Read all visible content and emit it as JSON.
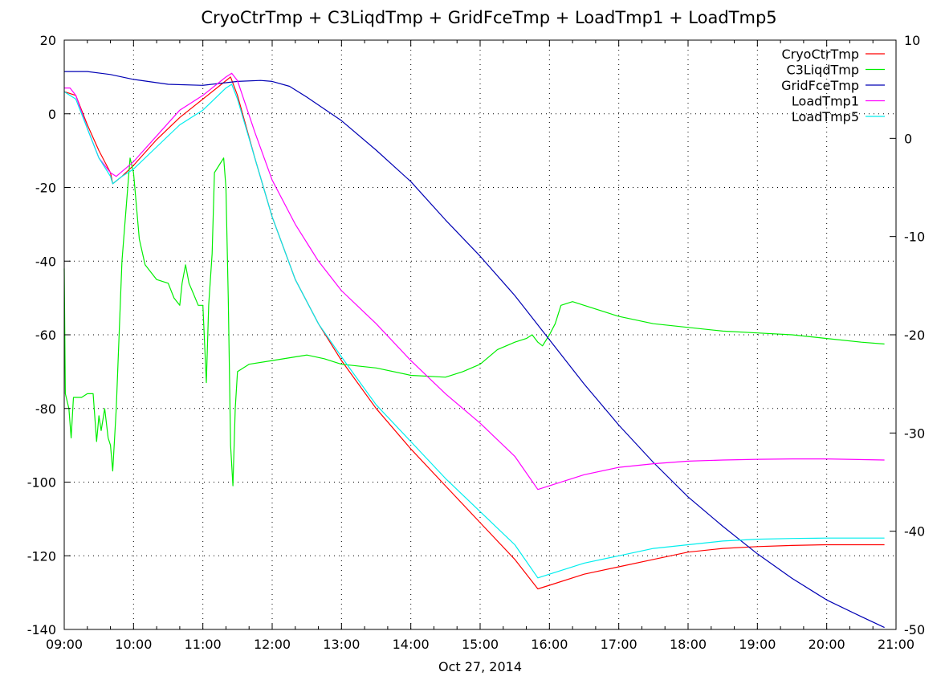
{
  "chart_data": {
    "type": "line",
    "title": "CryoCtrTmp + C3LiqdTmp + GridFceTmp + LoadTmp1 + LoadTmp5",
    "xlabel": "Oct 27, 2014",
    "x_ticks": [
      "09:00",
      "10:00",
      "11:00",
      "12:00",
      "13:00",
      "14:00",
      "15:00",
      "16:00",
      "17:00",
      "18:00",
      "19:00",
      "20:00",
      "21:00"
    ],
    "xlim": [
      "09:00",
      "21:00"
    ],
    "ylim": [
      -140,
      20
    ],
    "y_ticks": [
      "20",
      "0",
      "-20",
      "-40",
      "-60",
      "-80",
      "-100",
      "-120",
      "-140"
    ],
    "y2lim": [
      -50,
      10
    ],
    "y2_ticks": [
      "10",
      "0",
      "-10",
      "-20",
      "-30",
      "-40",
      "-50"
    ],
    "grid": true,
    "legend_position": "top-right",
    "series": [
      {
        "name": "CryoCtrTmp",
        "color": "#ff0000",
        "axis": "left",
        "points": [
          [
            "09:00",
            6
          ],
          [
            "09:10",
            5
          ],
          [
            "09:20",
            -3
          ],
          [
            "09:30",
            -10
          ],
          [
            "09:40",
            -16
          ],
          [
            "09:42",
            -19
          ],
          [
            "09:50",
            -17
          ],
          [
            "10:00",
            -14
          ],
          [
            "10:20",
            -7
          ],
          [
            "10:40",
            -1
          ],
          [
            "11:00",
            4
          ],
          [
            "11:20",
            9
          ],
          [
            "11:24",
            10
          ],
          [
            "11:30",
            5
          ],
          [
            "11:45",
            -12
          ],
          [
            "12:00",
            -28
          ],
          [
            "12:20",
            -45
          ],
          [
            "12:40",
            -57
          ],
          [
            "13:00",
            -67
          ],
          [
            "13:30",
            -80
          ],
          [
            "14:00",
            -91
          ],
          [
            "14:30",
            -101
          ],
          [
            "15:00",
            -111
          ],
          [
            "15:30",
            -121
          ],
          [
            "15:50",
            -129
          ],
          [
            "16:00",
            -128
          ],
          [
            "16:30",
            -125
          ],
          [
            "17:00",
            -123
          ],
          [
            "17:30",
            -121
          ],
          [
            "18:00",
            -119
          ],
          [
            "18:30",
            -118
          ],
          [
            "19:00",
            -117.5
          ],
          [
            "19:30",
            -117.2
          ],
          [
            "20:00",
            -117
          ],
          [
            "20:50",
            -117
          ]
        ]
      },
      {
        "name": "C3LiqdTmp",
        "color": "#00ee00",
        "axis": "left",
        "points": [
          [
            "09:00",
            -42
          ],
          [
            "09:01",
            -76
          ],
          [
            "09:04",
            -80
          ],
          [
            "09:06",
            -88
          ],
          [
            "09:08",
            -77
          ],
          [
            "09:15",
            -77
          ],
          [
            "09:20",
            -76
          ],
          [
            "09:25",
            -76
          ],
          [
            "09:28",
            -89
          ],
          [
            "09:30",
            -82
          ],
          [
            "09:32",
            -86
          ],
          [
            "09:35",
            -80
          ],
          [
            "09:38",
            -88
          ],
          [
            "09:40",
            -90
          ],
          [
            "09:42",
            -97
          ],
          [
            "09:45",
            -80
          ],
          [
            "09:50",
            -40
          ],
          [
            "09:55",
            -20
          ],
          [
            "09:57",
            -12
          ],
          [
            "10:00",
            -16
          ],
          [
            "10:05",
            -34
          ],
          [
            "10:10",
            -41
          ],
          [
            "10:20",
            -45
          ],
          [
            "10:30",
            -46
          ],
          [
            "10:35",
            -50
          ],
          [
            "10:40",
            -52
          ],
          [
            "10:42",
            -46
          ],
          [
            "10:45",
            -41
          ],
          [
            "10:48",
            -46
          ],
          [
            "10:52",
            -49
          ],
          [
            "10:56",
            -52
          ],
          [
            "11:00",
            -52
          ],
          [
            "11:03",
            -73
          ],
          [
            "11:05",
            -52
          ],
          [
            "11:08",
            -38
          ],
          [
            "11:10",
            -16
          ],
          [
            "11:14",
            -14
          ],
          [
            "11:18",
            -12
          ],
          [
            "11:20",
            -20
          ],
          [
            "11:22",
            -50
          ],
          [
            "11:24",
            -90
          ],
          [
            "11:26",
            -101
          ],
          [
            "11:28",
            -80
          ],
          [
            "11:30",
            -70
          ],
          [
            "11:40",
            -68
          ],
          [
            "12:00",
            -67
          ],
          [
            "12:20",
            -66
          ],
          [
            "12:30",
            -65.5
          ],
          [
            "12:45",
            -66.5
          ],
          [
            "13:00",
            -68
          ],
          [
            "13:30",
            -69
          ],
          [
            "14:00",
            -71
          ],
          [
            "14:30",
            -71.5
          ],
          [
            "14:45",
            -70
          ],
          [
            "15:00",
            -68
          ],
          [
            "15:15",
            -64
          ],
          [
            "15:30",
            -62
          ],
          [
            "15:40",
            -61
          ],
          [
            "15:45",
            -60
          ],
          [
            "15:50",
            -62
          ],
          [
            "15:54",
            -63
          ],
          [
            "16:00",
            -60
          ],
          [
            "16:05",
            -57
          ],
          [
            "16:10",
            -52
          ],
          [
            "16:20",
            -51
          ],
          [
            "16:30",
            -52
          ],
          [
            "17:00",
            -55
          ],
          [
            "17:30",
            -57
          ],
          [
            "18:00",
            -58
          ],
          [
            "18:30",
            -59
          ],
          [
            "19:00",
            -59.5
          ],
          [
            "19:30",
            -60
          ],
          [
            "20:00",
            -61
          ],
          [
            "20:30",
            -62
          ],
          [
            "20:50",
            -62.5
          ]
        ]
      },
      {
        "name": "GridFceTmp",
        "color": "#0000b4",
        "axis": "right",
        "points": [
          [
            "09:00",
            6.8
          ],
          [
            "09:20",
            6.8
          ],
          [
            "09:40",
            6.5
          ],
          [
            "10:00",
            6.0
          ],
          [
            "10:30",
            5.5
          ],
          [
            "11:00",
            5.4
          ],
          [
            "11:30",
            5.8
          ],
          [
            "11:50",
            5.9
          ],
          [
            "12:00",
            5.8
          ],
          [
            "12:15",
            5.3
          ],
          [
            "12:30",
            4.2
          ],
          [
            "13:00",
            1.8
          ],
          [
            "13:30",
            -1.2
          ],
          [
            "14:00",
            -4.4
          ],
          [
            "14:30",
            -8.3
          ],
          [
            "15:00",
            -12.0
          ],
          [
            "15:30",
            -16.0
          ],
          [
            "16:00",
            -20.5
          ],
          [
            "16:30",
            -25.0
          ],
          [
            "17:00",
            -29.2
          ],
          [
            "17:30",
            -33.0
          ],
          [
            "18:00",
            -36.5
          ],
          [
            "18:30",
            -39.5
          ],
          [
            "19:00",
            -42.3
          ],
          [
            "19:30",
            -44.8
          ],
          [
            "20:00",
            -47.0
          ],
          [
            "20:30",
            -48.7
          ],
          [
            "20:50",
            -49.8
          ]
        ]
      },
      {
        "name": "LoadTmp1",
        "color": "#ff00ff",
        "axis": "left",
        "points": [
          [
            "09:00",
            7
          ],
          [
            "09:05",
            7
          ],
          [
            "09:10",
            5
          ],
          [
            "09:20",
            -4
          ],
          [
            "09:30",
            -12
          ],
          [
            "09:40",
            -16
          ],
          [
            "09:45",
            -17
          ],
          [
            "10:00",
            -13
          ],
          [
            "10:20",
            -6
          ],
          [
            "10:40",
            1
          ],
          [
            "11:00",
            5
          ],
          [
            "11:20",
            10
          ],
          [
            "11:25",
            11
          ],
          [
            "11:30",
            9
          ],
          [
            "11:45",
            -5
          ],
          [
            "12:00",
            -18
          ],
          [
            "12:20",
            -30
          ],
          [
            "12:40",
            -40
          ],
          [
            "13:00",
            -48
          ],
          [
            "13:30",
            -57
          ],
          [
            "14:00",
            -67
          ],
          [
            "14:30",
            -76
          ],
          [
            "15:00",
            -84
          ],
          [
            "15:30",
            -93
          ],
          [
            "15:50",
            -102
          ],
          [
            "16:00",
            -101
          ],
          [
            "16:30",
            -98
          ],
          [
            "17:00",
            -96
          ],
          [
            "17:30",
            -95
          ],
          [
            "18:00",
            -94.3
          ],
          [
            "18:30",
            -94
          ],
          [
            "19:00",
            -93.8
          ],
          [
            "19:30",
            -93.7
          ],
          [
            "20:00",
            -93.7
          ],
          [
            "20:50",
            -94
          ]
        ]
      },
      {
        "name": "LoadTmp5",
        "color": "#00eeee",
        "axis": "left",
        "points": [
          [
            "09:00",
            6
          ],
          [
            "09:10",
            4
          ],
          [
            "09:20",
            -4
          ],
          [
            "09:30",
            -12
          ],
          [
            "09:40",
            -17
          ],
          [
            "09:42",
            -19
          ],
          [
            "09:50",
            -17
          ],
          [
            "10:00",
            -15
          ],
          [
            "10:20",
            -9
          ],
          [
            "10:40",
            -3
          ],
          [
            "11:00",
            1
          ],
          [
            "11:20",
            7
          ],
          [
            "11:25",
            8
          ],
          [
            "11:30",
            4
          ],
          [
            "11:45",
            -12
          ],
          [
            "12:00",
            -28
          ],
          [
            "12:20",
            -45
          ],
          [
            "12:40",
            -57
          ],
          [
            "13:00",
            -66
          ],
          [
            "13:30",
            -79
          ],
          [
            "14:00",
            -89
          ],
          [
            "14:30",
            -99
          ],
          [
            "15:00",
            -108
          ],
          [
            "15:30",
            -117
          ],
          [
            "15:50",
            -126
          ],
          [
            "16:00",
            -125
          ],
          [
            "16:30",
            -122
          ],
          [
            "17:00",
            -120
          ],
          [
            "17:30",
            -118
          ],
          [
            "18:00",
            -117
          ],
          [
            "18:30",
            -116
          ],
          [
            "19:00",
            -115.5
          ],
          [
            "19:30",
            -115.3
          ],
          [
            "20:00",
            -115.2
          ],
          [
            "20:50",
            -115.2
          ]
        ]
      }
    ]
  }
}
